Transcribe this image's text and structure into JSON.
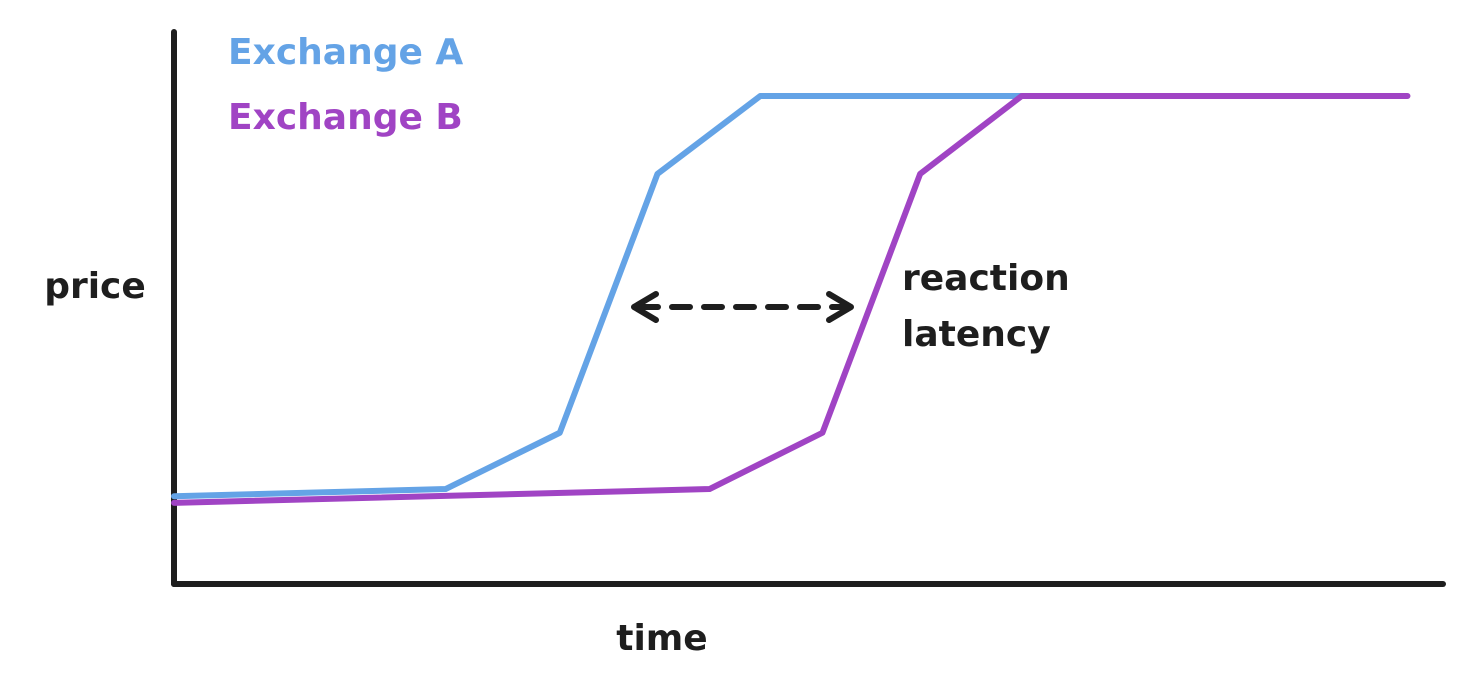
{
  "chart_data": {
    "type": "line",
    "x_label": "time",
    "y_label": "price",
    "xlim": [
      0,
      100
    ],
    "ylim": [
      0,
      100
    ],
    "series": [
      {
        "name": "Exchange A",
        "color": "#64a3e6",
        "x": [
          0,
          21.4,
          30.4,
          38.1,
          46.2,
          66.7
        ],
        "values": [
          15.9,
          17.2,
          27.4,
          74.3,
          88.4,
          88.4
        ]
      },
      {
        "name": "Exchange B",
        "color": "#a044c4",
        "x": [
          0,
          42.2,
          51.1,
          58.8,
          66.8,
          97.2
        ],
        "values": [
          14.7,
          17.2,
          27.4,
          74.3,
          88.4,
          88.4
        ]
      }
    ],
    "annotation": [
      "reaction",
      "latency"
    ]
  }
}
